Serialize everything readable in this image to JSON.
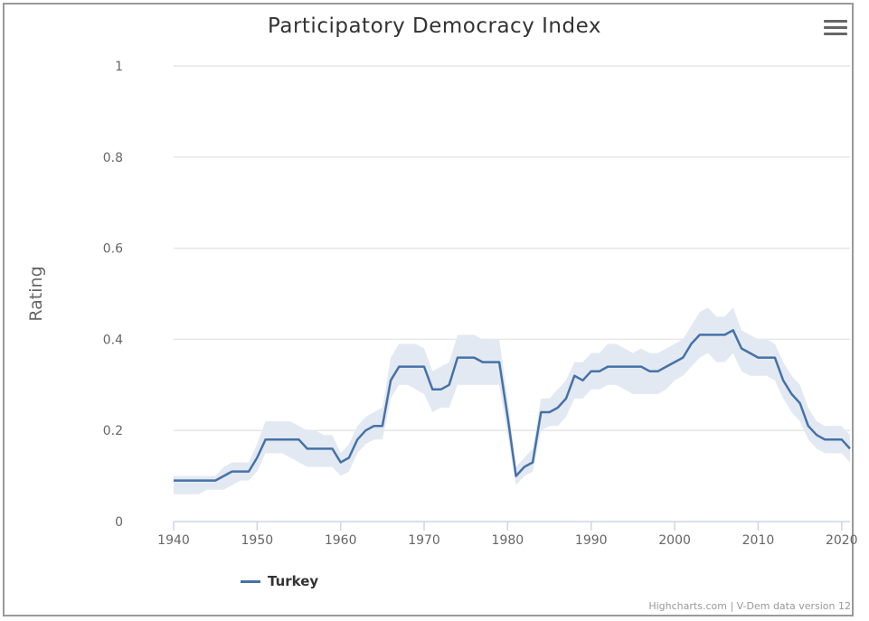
{
  "chart_data": {
    "type": "line",
    "title": "Participatory Democracy Index",
    "ylabel": "Rating",
    "xlabel": "",
    "xlim": [
      1940,
      2021
    ],
    "ylim": [
      0,
      1
    ],
    "x_ticks": [
      1940,
      1950,
      1960,
      1970,
      1980,
      1990,
      2000,
      2010,
      2020
    ],
    "y_ticks": [
      0,
      0.2,
      0.4,
      0.6,
      0.8,
      1
    ],
    "y_tick_labels": [
      "0",
      "0.2",
      "0.4",
      "0.6",
      "0.8",
      "1"
    ],
    "grid": "horizontal",
    "legend_position": "bottom-left",
    "series": [
      {
        "name": "Turkey",
        "color": "#4572a7",
        "band_color": "#e3e9f2",
        "x": [
          1940,
          1941,
          1942,
          1943,
          1944,
          1945,
          1946,
          1947,
          1948,
          1949,
          1950,
          1951,
          1952,
          1953,
          1954,
          1955,
          1956,
          1957,
          1958,
          1959,
          1960,
          1961,
          1962,
          1963,
          1964,
          1965,
          1966,
          1967,
          1968,
          1969,
          1970,
          1971,
          1972,
          1973,
          1974,
          1975,
          1976,
          1977,
          1978,
          1979,
          1980,
          1981,
          1982,
          1983,
          1984,
          1985,
          1986,
          1987,
          1988,
          1989,
          1990,
          1991,
          1992,
          1993,
          1994,
          1995,
          1996,
          1997,
          1998,
          1999,
          2000,
          2001,
          2002,
          2003,
          2004,
          2005,
          2006,
          2007,
          2008,
          2009,
          2010,
          2011,
          2012,
          2013,
          2014,
          2015,
          2016,
          2017,
          2018,
          2019,
          2020,
          2021
        ],
        "values": [
          0.09,
          0.09,
          0.09,
          0.09,
          0.09,
          0.09,
          0.1,
          0.11,
          0.11,
          0.11,
          0.14,
          0.18,
          0.18,
          0.18,
          0.18,
          0.18,
          0.16,
          0.16,
          0.16,
          0.16,
          0.13,
          0.14,
          0.18,
          0.2,
          0.21,
          0.21,
          0.31,
          0.34,
          0.34,
          0.34,
          0.34,
          0.29,
          0.29,
          0.3,
          0.36,
          0.36,
          0.36,
          0.35,
          0.35,
          0.35,
          0.23,
          0.1,
          0.12,
          0.13,
          0.24,
          0.24,
          0.25,
          0.27,
          0.32,
          0.31,
          0.33,
          0.33,
          0.34,
          0.34,
          0.34,
          0.34,
          0.34,
          0.33,
          0.33,
          0.34,
          0.35,
          0.36,
          0.39,
          0.41,
          0.41,
          0.41,
          0.41,
          0.42,
          0.38,
          0.37,
          0.36,
          0.36,
          0.36,
          0.31,
          0.28,
          0.26,
          0.21,
          0.19,
          0.18,
          0.18,
          0.18,
          0.16
        ],
        "lower": [
          0.06,
          0.06,
          0.06,
          0.06,
          0.07,
          0.07,
          0.07,
          0.08,
          0.09,
          0.09,
          0.11,
          0.15,
          0.15,
          0.15,
          0.14,
          0.13,
          0.12,
          0.12,
          0.12,
          0.12,
          0.1,
          0.11,
          0.15,
          0.17,
          0.18,
          0.18,
          0.27,
          0.3,
          0.3,
          0.29,
          0.28,
          0.24,
          0.25,
          0.25,
          0.3,
          0.3,
          0.3,
          0.3,
          0.3,
          0.3,
          0.19,
          0.08,
          0.1,
          0.11,
          0.2,
          0.21,
          0.21,
          0.23,
          0.27,
          0.27,
          0.29,
          0.29,
          0.3,
          0.3,
          0.29,
          0.28,
          0.28,
          0.28,
          0.28,
          0.29,
          0.31,
          0.32,
          0.34,
          0.36,
          0.37,
          0.35,
          0.35,
          0.37,
          0.33,
          0.32,
          0.32,
          0.32,
          0.31,
          0.27,
          0.24,
          0.22,
          0.18,
          0.16,
          0.15,
          0.15,
          0.15,
          0.13
        ],
        "upper": [
          0.1,
          0.1,
          0.1,
          0.1,
          0.1,
          0.1,
          0.12,
          0.13,
          0.13,
          0.13,
          0.17,
          0.22,
          0.22,
          0.22,
          0.22,
          0.21,
          0.2,
          0.2,
          0.19,
          0.19,
          0.15,
          0.17,
          0.21,
          0.23,
          0.24,
          0.25,
          0.36,
          0.39,
          0.39,
          0.39,
          0.38,
          0.33,
          0.34,
          0.35,
          0.41,
          0.41,
          0.41,
          0.4,
          0.4,
          0.4,
          0.27,
          0.12,
          0.14,
          0.16,
          0.27,
          0.27,
          0.29,
          0.31,
          0.35,
          0.35,
          0.37,
          0.37,
          0.39,
          0.39,
          0.38,
          0.37,
          0.38,
          0.37,
          0.37,
          0.38,
          0.39,
          0.4,
          0.43,
          0.46,
          0.47,
          0.45,
          0.45,
          0.47,
          0.42,
          0.41,
          0.4,
          0.4,
          0.39,
          0.35,
          0.32,
          0.3,
          0.25,
          0.22,
          0.21,
          0.21,
          0.21,
          0.19
        ]
      }
    ]
  },
  "menu_icon": "hamburger-menu-icon",
  "credits": "Highcharts.com | V-Dem data version 12"
}
